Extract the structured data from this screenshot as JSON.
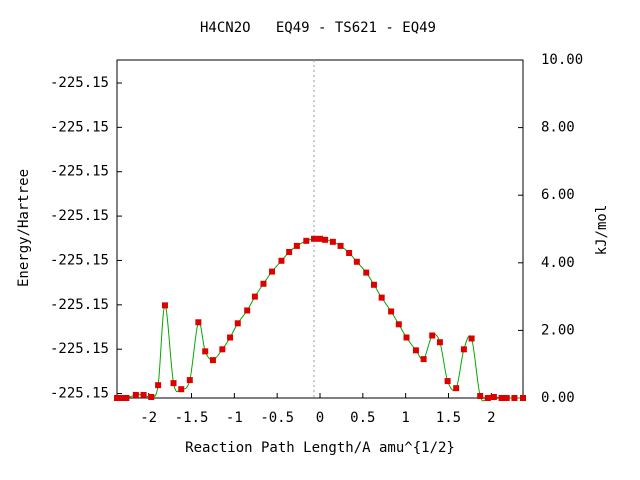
{
  "chart_data": {
    "type": "line",
    "title": "H4CN2O   EQ49 - TS621 - EQ49",
    "xlabel": "Reaction Path Length/A amu^{1/2}",
    "ylabel": "Energy/Hartree",
    "y2label": "kJ/mol",
    "xlim": [
      -2.37,
      2.37
    ],
    "xticks": [
      -2,
      -1.5,
      -1,
      -0.5,
      0,
      0.5,
      1,
      1.5,
      2
    ],
    "ylim": [
      -225.154,
      -225.150191
    ],
    "yticks": [
      {
        "value": -225.15395,
        "label": "-225.15"
      },
      {
        "value": -225.15345,
        "label": "-225.15"
      },
      {
        "value": -225.15295,
        "label": "-225.15"
      },
      {
        "value": -225.15245,
        "label": "-225.15"
      },
      {
        "value": -225.15195,
        "label": "-225.15"
      },
      {
        "value": -225.15145,
        "label": "-225.15"
      },
      {
        "value": -225.15095,
        "label": "-225.15"
      },
      {
        "value": -225.15045,
        "label": "-225.15"
      }
    ],
    "y2lim": [
      0,
      10
    ],
    "y2ticks": [
      {
        "value": 0,
        "label": "0.00"
      },
      {
        "value": 2,
        "label": "2.00"
      },
      {
        "value": 4,
        "label": "4.00"
      },
      {
        "value": 6,
        "label": "6.00"
      },
      {
        "value": 8,
        "label": "8.00"
      },
      {
        "value": 10,
        "label": "10.00"
      }
    ],
    "series": [
      {
        "axis": "y2",
        "color": "#00aa00",
        "marker_color": "#dd0000",
        "x": [
          -2.37,
          -2.32,
          -2.26,
          -2.15,
          -2.06,
          -1.97,
          -1.89,
          -1.81,
          -1.71,
          -1.62,
          -1.52,
          -1.42,
          -1.34,
          -1.25,
          -1.14,
          -1.05,
          -0.96,
          -0.85,
          -0.76,
          -0.66,
          -0.56,
          -0.45,
          -0.36,
          -0.27,
          -0.16,
          -0.07,
          0,
          0.06,
          0.15,
          0.24,
          0.34,
          0.43,
          0.54,
          0.63,
          0.72,
          0.83,
          0.92,
          1.01,
          1.12,
          1.21,
          1.31,
          1.4,
          1.49,
          1.59,
          1.68,
          1.77,
          1.87,
          1.96,
          2.03,
          2.12,
          2.18,
          2.27,
          2.37
        ],
        "values": [
          0,
          0,
          0,
          0.09,
          0.09,
          0.03,
          0.38,
          2.74,
          0.44,
          0.26,
          0.53,
          2.24,
          1.38,
          1.12,
          1.44,
          1.79,
          2.21,
          2.59,
          3.0,
          3.38,
          3.74,
          4.06,
          4.32,
          4.5,
          4.65,
          4.71,
          4.71,
          4.68,
          4.62,
          4.5,
          4.29,
          4.03,
          3.71,
          3.35,
          2.97,
          2.56,
          2.18,
          1.79,
          1.41,
          1.15,
          1.85,
          1.65,
          0.5,
          0.29,
          1.44,
          1.76,
          0.06,
          0,
          0.03,
          0,
          0,
          0,
          0
        ]
      }
    ]
  }
}
